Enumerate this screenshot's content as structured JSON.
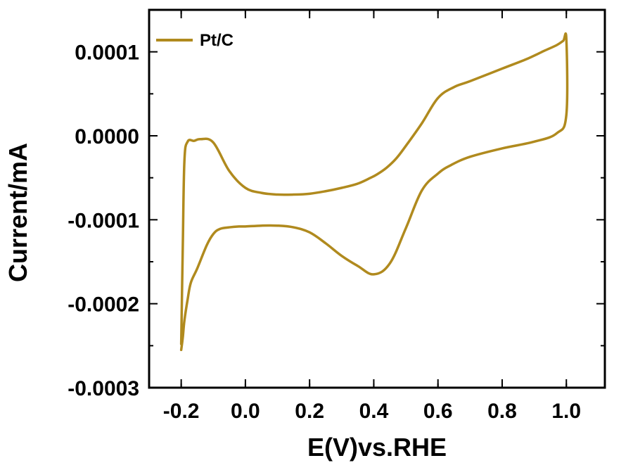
{
  "chart_data": {
    "type": "line",
    "xlabel": "E(V)vs.RHE",
    "ylabel": "Current/mA",
    "xlim": [
      -0.3,
      1.12
    ],
    "ylim": [
      -0.0003,
      0.00015
    ],
    "x_ticks": [
      -0.2,
      0.0,
      0.2,
      0.4,
      0.6,
      0.8,
      1.0
    ],
    "x_tick_labels": [
      "-0.2",
      "0.0",
      "0.2",
      "0.4",
      "0.6",
      "0.8",
      "1.0"
    ],
    "y_ticks": [
      -0.0003,
      -0.0002,
      -0.0001,
      0.0,
      0.0001
    ],
    "y_tick_labels": [
      "-0.0003",
      "-0.0002",
      "-0.0001",
      "0.0000",
      "0.0001"
    ],
    "legend_position": "top-left",
    "grid": false,
    "series": [
      {
        "name": "Pt/C",
        "color": "#B08A1E",
        "x": [
          -0.2,
          -0.195,
          -0.19,
          -0.18,
          -0.17,
          -0.15,
          -0.12,
          -0.1,
          -0.08,
          -0.05,
          -0.02,
          0.0,
          0.05,
          0.1,
          0.15,
          0.2,
          0.25,
          0.3,
          0.35,
          0.4,
          0.45,
          0.5,
          0.55,
          0.6,
          0.64,
          0.7,
          0.8,
          0.9,
          0.97,
          1.0,
          1.0,
          0.99,
          0.97,
          0.93,
          0.88,
          0.8,
          0.7,
          0.65,
          0.6,
          0.55,
          0.5,
          0.47,
          0.44,
          0.41,
          0.39,
          0.35,
          0.3,
          0.25,
          0.2,
          0.15,
          0.1,
          0.05,
          0.0,
          -0.05,
          -0.1,
          -0.14,
          -0.16,
          -0.18,
          -0.19,
          -0.195,
          -0.2
        ],
        "y": [
          -0.000255,
          -0.00024,
          -0.00022,
          -0.000195,
          -0.000175,
          -0.000158,
          -0.00013,
          -0.000117,
          -0.000111,
          -0.000109,
          -0.000108,
          -0.000108,
          -0.000107,
          -0.000107,
          -0.000109,
          -0.000115,
          -0.000128,
          -0.000143,
          -0.000155,
          -0.000165,
          -0.000152,
          -0.00011,
          -6.5e-05,
          -4.5e-05,
          -3.5e-05,
          -2.5e-05,
          -1.5e-05,
          -7e-06,
          3e-06,
          2.5e-05,
          0.000115,
          0.000113,
          0.000108,
          0.000101,
          9.2e-05,
          8e-05,
          6.5e-05,
          5.8e-05,
          4.5e-05,
          1.5e-05,
          -1.2e-05,
          -2.7e-05,
          -3.8e-05,
          -4.6e-05,
          -5e-05,
          -5.7e-05,
          -6.2e-05,
          -6.6e-05,
          -6.9e-05,
          -7e-05,
          -7e-05,
          -6.8e-05,
          -6.2e-05,
          -4.2e-05,
          -8e-06,
          -4e-06,
          -6e-06,
          -7e-06,
          -3e-05,
          -0.00013,
          -0.000248
        ]
      }
    ]
  }
}
